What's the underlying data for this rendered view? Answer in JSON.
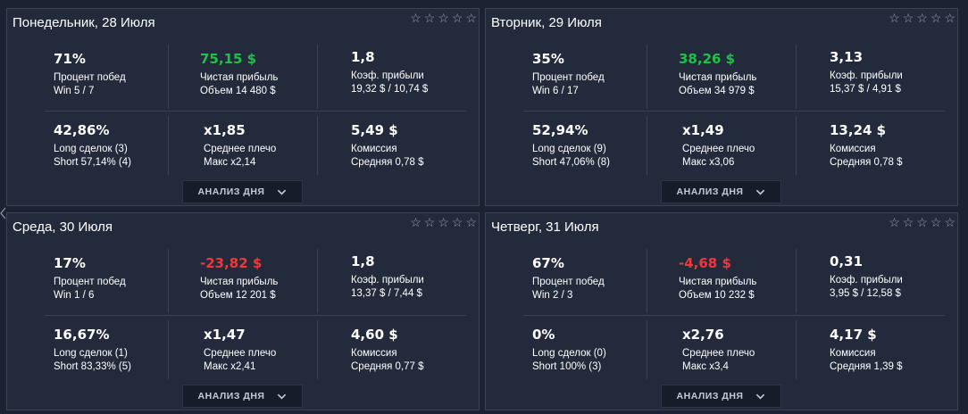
{
  "cards": [
    {
      "title": "Понедельник, 28 Июля",
      "win_rate": "71%",
      "win_rate_label": "Процент побед",
      "win_rate_sub": "Win 5 / 7",
      "net_profit": "75,15 $",
      "net_profit_sign": "pos",
      "net_profit_label": "Чистая прибыль",
      "net_profit_sub": "Объем 14 480 $",
      "profit_factor": "1,8",
      "profit_factor_label": "Коэф. прибыли",
      "profit_factor_sub": "19,32 $ / 10,74 $",
      "long_pct": "42,86%",
      "long_label": "Long сделок (3)",
      "long_sub": "Short 57,14% (4)",
      "leverage": "x1,85",
      "leverage_label": "Среднее плечо",
      "leverage_sub": "Макс x2,14",
      "commission": "5,49 $",
      "commission_label": "Комиссия",
      "commission_sub": "Средняя 0,78 $",
      "analyze": "АНАЛИЗ ДНЯ"
    },
    {
      "title": "Вторник, 29 Июля",
      "win_rate": "35%",
      "win_rate_label": "Процент побед",
      "win_rate_sub": "Win 6 / 17",
      "net_profit": "38,26 $",
      "net_profit_sign": "pos",
      "net_profit_label": "Чистая прибыль",
      "net_profit_sub": "Объем 34 979 $",
      "profit_factor": "3,13",
      "profit_factor_label": "Коэф. прибыли",
      "profit_factor_sub": "15,37 $ / 4,91 $",
      "long_pct": "52,94%",
      "long_label": "Long сделок (9)",
      "long_sub": "Short 47,06% (8)",
      "leverage": "x1,49",
      "leverage_label": "Среднее плечо",
      "leverage_sub": "Макс x3,06",
      "commission": "13,24 $",
      "commission_label": "Комиссия",
      "commission_sub": "Средняя 0,78 $",
      "analyze": "АНАЛИЗ ДНЯ"
    },
    {
      "title": "Среда, 30 Июля",
      "win_rate": "17%",
      "win_rate_label": "Процент побед",
      "win_rate_sub": "Win 1 / 6",
      "net_profit": "-23,82 $",
      "net_profit_sign": "neg",
      "net_profit_label": "Чистая прибыль",
      "net_profit_sub": "Объем 12 201 $",
      "profit_factor": "1,8",
      "profit_factor_label": "Коэф. прибыли",
      "profit_factor_sub": "13,37 $ / 7,44 $",
      "long_pct": "16,67%",
      "long_label": "Long сделок (1)",
      "long_sub": "Short 83,33% (5)",
      "leverage": "x1,47",
      "leverage_label": "Среднее плечо",
      "leverage_sub": "Макс x2,41",
      "commission": "4,60 $",
      "commission_label": "Комиссия",
      "commission_sub": "Средняя 0,77 $",
      "analyze": "АНАЛИЗ ДНЯ"
    },
    {
      "title": "Четверг, 31 Июля",
      "win_rate": "67%",
      "win_rate_label": "Процент побед",
      "win_rate_sub": "Win 2 / 3",
      "net_profit": "-4,68 $",
      "net_profit_sign": "neg",
      "net_profit_label": "Чистая прибыль",
      "net_profit_sub": "Объем 10 232 $",
      "profit_factor": "0,31",
      "profit_factor_label": "Коэф. прибыли",
      "profit_factor_sub": "3,95 $ / 12,58 $",
      "long_pct": "0%",
      "long_label": "Long сделок (0)",
      "long_sub": "Short 100% (3)",
      "leverage": "x2,76",
      "leverage_label": "Среднее плечо",
      "leverage_sub": "Макс x3,4",
      "commission": "4,17 $",
      "commission_label": "Комиссия",
      "commission_sub": "Средняя 1,39 $",
      "analyze": "АНАЛИЗ ДНЯ"
    }
  ],
  "rating_icon": "star-outline-icon",
  "colors": {
    "positive": "#1fc249",
    "negative": "#f0383a",
    "background": "#1c2231",
    "card": "#222a3b"
  }
}
